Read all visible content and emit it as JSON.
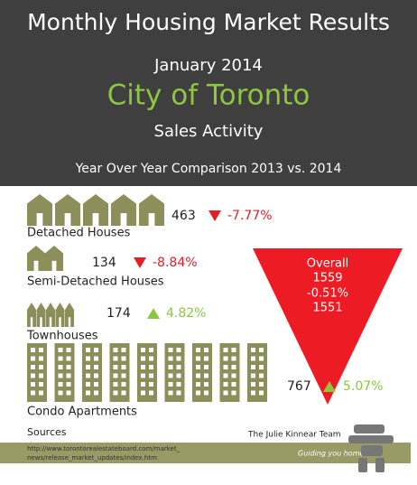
{
  "header": {
    "title": "Monthly Housing Market Results",
    "date": "January 2014",
    "city": "City of Toronto",
    "subtitle": "Sales Activity",
    "comparison": "Year Over Year Comparison 2013 vs. 2014"
  },
  "rows": [
    {
      "label": "Detached Houses",
      "value": "463",
      "change": "-7.77%"
    },
    {
      "label": "Semi-Detached Houses",
      "value": "134",
      "change": "-8.84%"
    },
    {
      "label": "Townhouses",
      "value": "174",
      "change": "4.82%"
    },
    {
      "label": "Condo Apartments",
      "value": "767",
      "change": "5.07%"
    }
  ],
  "overall": {
    "label": "Overall",
    "value_a": "1559",
    "change": "-0.51%",
    "value_b": "1551"
  },
  "sources": {
    "label": "Sources",
    "url_line1": "http://www.torontorealestateboard.com/market_",
    "url_line2": "news/release_market_updates/index.htm"
  },
  "brand": {
    "name": "The Julie Kinnear Team",
    "tagline": "Guiding you home"
  }
}
